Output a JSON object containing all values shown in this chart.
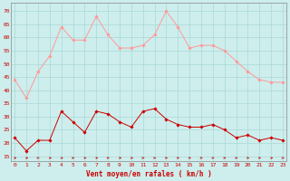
{
  "hours": [
    0,
    1,
    2,
    3,
    4,
    5,
    6,
    7,
    8,
    9,
    10,
    11,
    12,
    13,
    14,
    15,
    16,
    17,
    18,
    19,
    20,
    21,
    22,
    23
  ],
  "vent_moyen": [
    22,
    17,
    21,
    21,
    32,
    28,
    24,
    32,
    31,
    28,
    26,
    32,
    33,
    29,
    27,
    26,
    26,
    27,
    25,
    22,
    23,
    21,
    22,
    21
  ],
  "rafales": [
    44,
    37,
    47,
    53,
    64,
    59,
    59,
    68,
    61,
    56,
    56,
    57,
    61,
    70,
    64,
    56,
    57,
    57,
    55,
    51,
    47,
    44,
    43,
    43
  ],
  "wind_angles": [
    0,
    0,
    45,
    0,
    0,
    45,
    0,
    0,
    45,
    0,
    0,
    45,
    45,
    45,
    45,
    45,
    45,
    45,
    45,
    45,
    45,
    45,
    0,
    45
  ],
  "xlabel": "Vent moyen/en rafales ( km/h )",
  "ylabel_ticks": [
    15,
    20,
    25,
    30,
    35,
    40,
    45,
    50,
    55,
    60,
    65,
    70
  ],
  "ylim": [
    13,
    73
  ],
  "xlim": [
    -0.3,
    23.3
  ],
  "bg_color": "#cdeeed",
  "grid_color": "#aad8d5",
  "line_color_mean": "#cc0000",
  "line_color_gust": "#ff9999",
  "arrow_color": "#cc0000",
  "xlabel_color": "#cc0000",
  "tick_color": "#cc0000"
}
